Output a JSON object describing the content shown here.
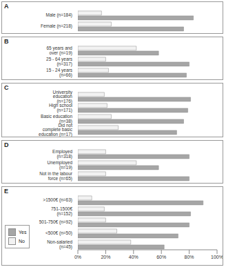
{
  "chart_data": [
    {
      "type": "bar",
      "title": "A",
      "orientation": "horizontal",
      "tick_labels": "y",
      "categories": [
        "Male (n=184)",
        "Female (n=218)"
      ],
      "series": [
        {
          "name": "Yes",
          "color": "#a6a6a6",
          "values": [
            83,
            76
          ]
        },
        {
          "name": "No",
          "color": "#f2f2f2",
          "values": [
            17,
            24
          ]
        }
      ],
      "xlim": [
        0,
        100
      ]
    },
    {
      "type": "bar",
      "title": "B",
      "orientation": "horizontal",
      "tick_labels": "y",
      "categories": [
        "65 years and over (n=19)",
        "25 - 64 years (n=317)",
        "15 - 24 years (n=66)"
      ],
      "series": [
        {
          "name": "Yes",
          "color": "#a6a6a6",
          "values": [
            58,
            80,
            78
          ]
        },
        {
          "name": "No",
          "color": "#f2f2f2",
          "values": [
            42,
            20,
            22
          ]
        }
      ],
      "xlim": [
        0,
        100
      ]
    },
    {
      "type": "bar",
      "title": "C",
      "orientation": "horizontal",
      "tick_labels": "y",
      "categories": [
        "University education (n=176)",
        "High school (n=171)",
        "Basic education (n=38)",
        "Did not complete basic education (n=17)"
      ],
      "series": [
        {
          "name": "Yes",
          "color": "#a6a6a6",
          "values": [
            81,
            79,
            76,
            71
          ]
        },
        {
          "name": "No",
          "color": "#f2f2f2",
          "values": [
            19,
            21,
            24,
            29
          ]
        }
      ],
      "xlim": [
        0,
        100
      ]
    },
    {
      "type": "bar",
      "title": "D",
      "orientation": "horizontal",
      "tick_labels": "y",
      "categories": [
        "Employed (n=318)",
        "Unemployed (n=19)",
        "Not in the labour force (n=65)"
      ],
      "series": [
        {
          "name": "Yes",
          "color": "#a6a6a6",
          "values": [
            80,
            58,
            80
          ]
        },
        {
          "name": "No",
          "color": "#f2f2f2",
          "values": [
            20,
            42,
            20
          ]
        }
      ],
      "xlim": [
        0,
        100
      ]
    },
    {
      "type": "bar",
      "title": "E",
      "orientation": "horizontal",
      "legend": "bottom left",
      "categories": [
        ">1500€ (n=63)",
        "751-1500€ (n=152)",
        "501-750€ (n=92)",
        "<500€ (n=50)",
        "Non-salaried (n=45)"
      ],
      "series": [
        {
          "name": "Yes",
          "color": "#a6a6a6",
          "values": [
            90,
            81,
            80,
            72,
            62
          ]
        },
        {
          "name": "No",
          "color": "#f2f2f2",
          "values": [
            10,
            19,
            20,
            28,
            38
          ]
        }
      ],
      "xlim": [
        0,
        100
      ],
      "xticks": [
        {
          "value": 0,
          "label": "0%"
        },
        {
          "value": 20,
          "label": "20%"
        },
        {
          "value": 40,
          "label": "40%"
        },
        {
          "value": 60,
          "label": "60%"
        },
        {
          "value": 80,
          "label": "80%"
        },
        {
          "value": 100,
          "label": "100%"
        }
      ]
    }
  ]
}
